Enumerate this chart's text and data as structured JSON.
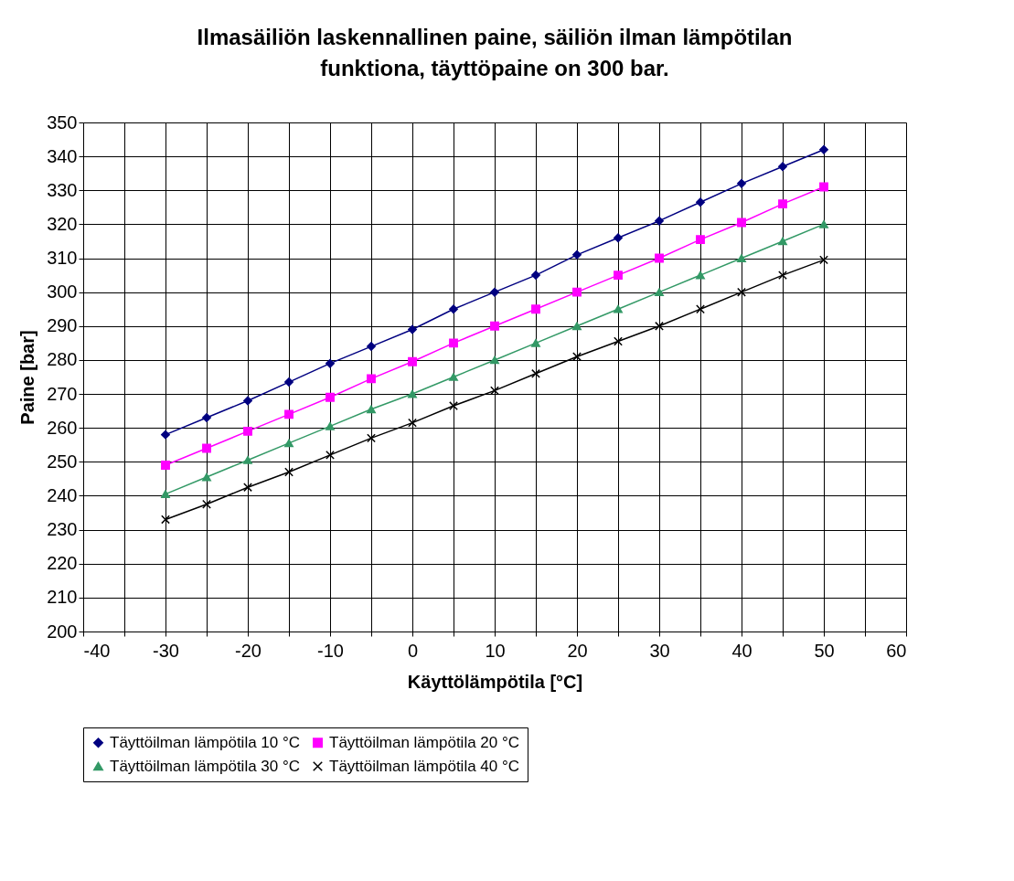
{
  "chart_data": {
    "type": "line",
    "title": "Ilmasäiliön laskennallinen paine, säiliön ilman lämpötilan funktiona, täyttöpaine on 300 bar.",
    "xlabel": "Käyttölämpötila [°C]",
    "ylabel": "Paine [bar]",
    "x": [
      -30,
      -25,
      -20,
      -15,
      -10,
      -5,
      0,
      5,
      10,
      15,
      20,
      25,
      30,
      35,
      40,
      45,
      50
    ],
    "series": [
      {
        "name": "Täyttöilman lämpötila 10 °C",
        "color": "#000080",
        "marker": "diamond",
        "values": [
          258,
          263,
          268,
          273.5,
          279,
          284,
          289,
          295,
          300,
          305,
          311,
          316,
          321,
          326.5,
          332,
          337,
          342
        ]
      },
      {
        "name": "Täyttöilman lämpötila 20 °C",
        "color": "#ff00ff",
        "marker": "square",
        "values": [
          249,
          254,
          259,
          264,
          269,
          274.5,
          279.5,
          285,
          290,
          295,
          300,
          305,
          310,
          315.5,
          320.5,
          326,
          331
        ]
      },
      {
        "name": "Täyttöilman lämpötila 30 °C",
        "color": "#339966",
        "marker": "triangle",
        "values": [
          240.5,
          245.5,
          250.5,
          255.5,
          260.5,
          265.5,
          270,
          275,
          280,
          285,
          290,
          295,
          300,
          305,
          310,
          315,
          320
        ]
      },
      {
        "name": "Täyttöilman lämpötila 40 °C",
        "color": "#000000",
        "marker": "cross",
        "values": [
          233,
          237.5,
          242.5,
          247,
          252,
          257,
          261.5,
          266.5,
          271,
          276,
          281,
          285.5,
          290,
          295,
          300,
          305,
          309.5
        ]
      }
    ],
    "xlim": [
      -40,
      60
    ],
    "xticks": [
      -40,
      {
        "value": -35,
        "label": null
      },
      -30,
      {
        "value": -25,
        "label": null
      },
      -20,
      {
        "value": -15,
        "label": null
      },
      -10,
      {
        "value": -5,
        "label": null
      },
      0,
      {
        "value": 5,
        "label": null
      },
      10,
      {
        "value": 15,
        "label": null
      },
      20,
      {
        "value": 25,
        "label": null
      },
      30,
      {
        "value": 35,
        "label": null
      },
      40,
      {
        "value": 45,
        "label": null
      },
      50,
      {
        "value": 55,
        "label": null
      },
      60
    ],
    "ylim": [
      200,
      350
    ],
    "yticks": [
      200,
      210,
      220,
      230,
      240,
      250,
      260,
      270,
      280,
      290,
      300,
      310,
      320,
      330,
      340,
      350
    ],
    "grid": true,
    "legend": "bottom",
    "line_style": "solid"
  }
}
